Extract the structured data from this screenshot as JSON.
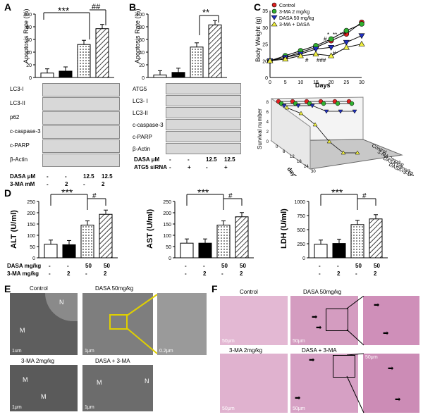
{
  "panels": {
    "A": {
      "letter": "A",
      "ylabel": "Apoptosis Rate (%)",
      "yticks": [
        "0",
        "20",
        "40",
        "60",
        "80",
        "100"
      ],
      "sig1": "***",
      "sig2": "##",
      "values": [
        7,
        10,
        52,
        77
      ],
      "blots": [
        "LC3-I",
        "LC3-II",
        "p62",
        "c-caspase-3",
        "c-PARP",
        "β-Actin"
      ],
      "row1_label": "DASA μM",
      "row1": [
        "-",
        "-",
        "12.5",
        "12.5"
      ],
      "row2_label": "3-MA mM",
      "row2": [
        "-",
        "2",
        "-",
        "2"
      ]
    },
    "B": {
      "letter": "B",
      "ylabel": "Apoptosis Rate (%)",
      "yticks": [
        "0",
        "20",
        "40",
        "60",
        "80",
        "100"
      ],
      "sig1": "**",
      "values": [
        4,
        8,
        48,
        83
      ],
      "blots": [
        "ATG5",
        "LC3- I",
        "LC3-II",
        "c-caspase-3",
        "c-PARP",
        "β-Actin"
      ],
      "row1_label": "DASA μM",
      "row1": [
        "-",
        "-",
        "12.5",
        "12.5"
      ],
      "row2_label": "ATG5 siRNA",
      "row2": [
        "-",
        "+",
        "-",
        "+"
      ]
    },
    "C": {
      "letter": "C",
      "ylabel": "Body Weight (g)",
      "xlabel": "Days",
      "yticks": [
        "0",
        "20",
        "25",
        "30",
        "35"
      ],
      "xticks": [
        "0",
        "5",
        "10",
        "15",
        "20",
        "25",
        "30"
      ],
      "legend": [
        "Control",
        "3-MA 2 mg/kg",
        "DASA 50 mg/kg",
        "3-MA + DASA"
      ],
      "annot": [
        "#",
        "###",
        "#",
        "#",
        "*",
        "**",
        "***"
      ],
      "surv_ylabel": "Survival number",
      "surv_xlabel": "days",
      "surv_zticks": [
        "0",
        "2",
        "4",
        "6",
        "8"
      ],
      "surv_xticks": [
        "0",
        "6",
        "12",
        "18",
        "24",
        "30"
      ],
      "surv_groups": [
        "Control",
        "3-MA 2mg/kg",
        "DASA 50mg/kg",
        "DASA+3-MA"
      ]
    },
    "D": {
      "letter": "D",
      "row1_label": "DASA mg/kg",
      "row1": [
        "-",
        "-",
        "50",
        "50"
      ],
      "row2_label": "3-MA mg/kg",
      "row2": [
        "-",
        "2",
        "-",
        "2"
      ],
      "charts": [
        {
          "ylabel": "ALT (U/ml)",
          "yticks": [
            "0",
            "50",
            "100",
            "150",
            "200",
            "250"
          ],
          "ymax": 250,
          "values": [
            60,
            58,
            145,
            193
          ],
          "sig1": "***",
          "sig2": "#"
        },
        {
          "ylabel": "AST (U/ml)",
          "yticks": [
            "0",
            "50",
            "100",
            "150",
            "200",
            "250"
          ],
          "ymax": 250,
          "values": [
            65,
            65,
            145,
            182
          ],
          "sig1": "***",
          "sig2": "#"
        },
        {
          "ylabel": "LDH (U/ml)",
          "yticks": [
            "0",
            "250",
            "500",
            "750",
            "1000"
          ],
          "ymax": 1000,
          "values": [
            240,
            255,
            590,
            690
          ],
          "sig1": "***",
          "sig2": "#"
        }
      ]
    },
    "E": {
      "letter": "E",
      "titles": [
        "Control",
        "DASA 50mg/kg",
        "3-MA   2mg/kg",
        "DASA + 3-MA"
      ],
      "scales": [
        "1um",
        "1μm",
        "0.2μm",
        "1μm",
        "1μm"
      ],
      "marks": [
        "M",
        "N"
      ]
    },
    "F": {
      "letter": "F",
      "titles": [
        "Control",
        "DASA 50mg/kg",
        "3-MA   2mg/kg",
        "DASA + 3-MA"
      ],
      "scales": [
        "50μm",
        "50μm",
        "50μm",
        "50μm",
        "50μm",
        "50μm"
      ]
    }
  },
  "colors": {
    "control": "#ffffff",
    "inhibitor": "#000000",
    "red": "#e02020",
    "green": "#30b030",
    "blue": "#2030c0",
    "yellow": "#f0f040",
    "em_gray": "#6a6a6a",
    "he_pink": "#d9a6c7",
    "zoom_box": "#e0d000"
  }
}
